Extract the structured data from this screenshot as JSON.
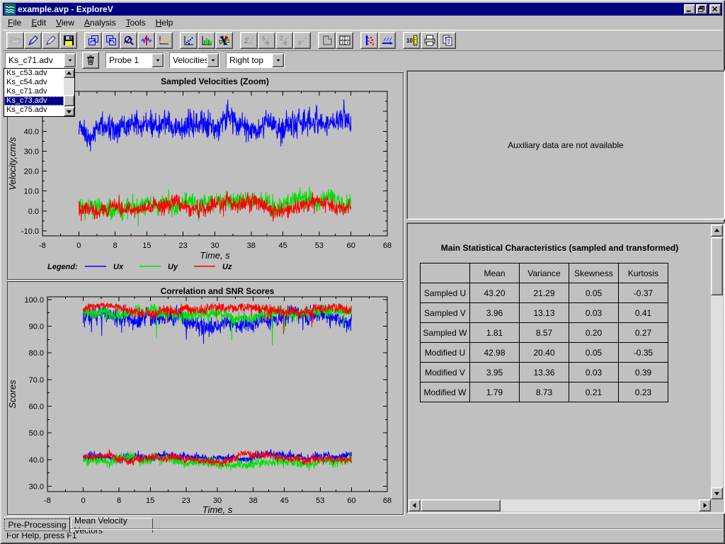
{
  "window": {
    "title": "example.avp - ExploreV"
  },
  "window_controls": [
    "minimize",
    "restore",
    "close"
  ],
  "menu": {
    "items": [
      "File",
      "Edit",
      "View",
      "Analysis",
      "Tools",
      "Help"
    ]
  },
  "toolbar": {
    "buttons": [
      {
        "name": "open-file-button",
        "icon": "open-file",
        "disabled": true
      },
      {
        "name": "pen-edit-blue-button",
        "icon": "pen-blue",
        "disabled": false
      },
      {
        "name": "pen-edit-button",
        "icon": "pen-plain",
        "disabled": false
      },
      {
        "name": "save-button",
        "icon": "save",
        "disabled": false
      },
      {
        "name": "undo-view-button",
        "icon": "undo-page",
        "disabled": false,
        "gap": true
      },
      {
        "name": "redo-view-button",
        "icon": "redo-page",
        "disabled": false
      },
      {
        "name": "zoom-graph-button",
        "icon": "zoom-graph",
        "disabled": false
      },
      {
        "name": "despike-filter-button",
        "icon": "despike",
        "disabled": false
      },
      {
        "name": "smooth-curve-button",
        "icon": "smooth",
        "disabled": false
      },
      {
        "name": "scatter-plot-button",
        "icon": "scatter",
        "disabled": false,
        "gap": true
      },
      {
        "name": "histogram-button",
        "icon": "bars",
        "disabled": false
      },
      {
        "name": "palette-fan-button",
        "icon": "palette",
        "disabled": false
      },
      {
        "name": "sigma-transform-button",
        "icon": "sigma",
        "disabled": true,
        "gap": true
      },
      {
        "name": "rotate-5theta-button",
        "icon": "rot5",
        "disabled": true
      },
      {
        "name": "rotate-2theta-button",
        "icon": "rot2",
        "disabled": true
      },
      {
        "name": "slope-line-button",
        "icon": "sline",
        "disabled": true
      },
      {
        "name": "page-flip-button",
        "icon": "pageflip",
        "disabled": false,
        "gap": true
      },
      {
        "name": "tile-windows-button",
        "icon": "tile",
        "disabled": false
      },
      {
        "name": "vertical-profile-button",
        "icon": "vprofile",
        "disabled": false,
        "gap": true
      },
      {
        "name": "horizontal-profile-button",
        "icon": "hprofile",
        "disabled": false
      },
      {
        "name": "scale-units-button",
        "icon": "ruler10",
        "disabled": false,
        "gap": true
      },
      {
        "name": "print-button",
        "icon": "print",
        "disabled": false
      },
      {
        "name": "copy-button",
        "icon": "copy",
        "disabled": false
      }
    ]
  },
  "combos": {
    "file": {
      "value": "Ks_c71.adv"
    },
    "probe": {
      "value": "Probe 1"
    },
    "quantity": {
      "value": "Velocities"
    },
    "position": {
      "value": "Right top"
    }
  },
  "file_dropdown": {
    "items": [
      "Ks_c53.adv",
      "Ks_c54.adv",
      "Ks_c71.adv",
      "Ks_c73.adv",
      "Ks_c75.adv"
    ],
    "selected_index": 3
  },
  "aux_panel": {
    "message": "Auxiliary data are not available"
  },
  "stats": {
    "title": "Main Statistical Characteristics (sampled and transformed)",
    "columns": [
      "",
      "Mean",
      "Variance",
      "Skewness",
      "Kurtosis"
    ],
    "rows": [
      {
        "label": "Sampled U",
        "values": [
          "43.20",
          "21.29",
          "0.05",
          "-0.37"
        ]
      },
      {
        "label": "Sampled V",
        "values": [
          "3.96",
          "13.13",
          "0.03",
          "0.41"
        ]
      },
      {
        "label": "Sampled W",
        "values": [
          "1.81",
          "8.57",
          "0.20",
          "0.27"
        ]
      },
      {
        "label": "Modified U",
        "values": [
          "42.98",
          "20.40",
          "0.05",
          "-0.35"
        ]
      },
      {
        "label": "Modified V",
        "values": [
          "3.95",
          "13.36",
          "0.03",
          "0.39"
        ]
      },
      {
        "label": "Modified W",
        "values": [
          "1.79",
          "8.73",
          "0.21",
          "0.23"
        ]
      }
    ]
  },
  "tabs": [
    {
      "label": "Pre-Processing",
      "active": true
    },
    {
      "label": "Mean Velocity Vectors",
      "active": false
    }
  ],
  "status": {
    "text": "For Help, press F1"
  },
  "colors": {
    "titlebar": "#000080",
    "selection": "#000080",
    "ux": "#0000ff",
    "uy": "#00e100",
    "uz": "#ff0000"
  },
  "chart_data": [
    {
      "type": "line",
      "title": "Sampled Velocities (Zoom)",
      "xlabel": "Time, s",
      "ylabel": "Velocity,cm/s",
      "xlim": [
        -8,
        68
      ],
      "ylim": [
        -12.5,
        60
      ],
      "xticks": [
        -8,
        0,
        8,
        15,
        23,
        30,
        38,
        45,
        53,
        60,
        68
      ],
      "yticks": [
        -10,
        0,
        10,
        20,
        30,
        40
      ],
      "x_data_range": [
        0,
        60
      ],
      "grid": false,
      "legend": {
        "label": "Legend:",
        "entries": [
          {
            "name": "Ux",
            "color": "#0000ff"
          },
          {
            "name": "Uy",
            "color": "#00e100"
          },
          {
            "name": "Uz",
            "color": "#ff0000"
          }
        ]
      },
      "series": [
        {
          "name": "Ux",
          "color": "#0000ff",
          "mean": 43.2,
          "sd": 4.2
        },
        {
          "name": "Uy",
          "color": "#00e100",
          "mean": 3.96,
          "sd": 3.1
        },
        {
          "name": "Uz",
          "color": "#ff0000",
          "mean": 1.81,
          "sd": 2.7
        }
      ]
    },
    {
      "type": "line",
      "title": "Correlation and SNR Scores",
      "xlabel": "Time, s",
      "ylabel": "Scores",
      "xlim": [
        -8,
        68
      ],
      "ylim": [
        28,
        101
      ],
      "xticks": [
        -8,
        0,
        8,
        15,
        23,
        30,
        38,
        45,
        53,
        60,
        68
      ],
      "yticks": [
        30,
        40,
        50,
        60,
        70,
        80,
        90,
        100
      ],
      "x_data_range": [
        0,
        60
      ],
      "grid": false,
      "series": [
        {
          "name": "Correlation Ux",
          "color": "#0000ff",
          "mean": 93.8,
          "sd": 2.2,
          "spike_p": 0.025,
          "spike_depth": 8,
          "max": 98.0
        },
        {
          "name": "Correlation Uy",
          "color": "#00e100",
          "mean": 95.2,
          "sd": 1.5,
          "spike_p": 0.005,
          "spike_depth": 20,
          "max": 98.3
        },
        {
          "name": "Correlation Uz",
          "color": "#ff0000",
          "mean": 96.0,
          "sd": 1.3,
          "spike_p": 0.01,
          "spike_depth": 10,
          "max": 98.5
        },
        {
          "name": "SNR Ux",
          "color": "#0000ff",
          "mean": 41.2,
          "sd": 1.0
        },
        {
          "name": "SNR Uy",
          "color": "#00e100",
          "mean": 39.6,
          "sd": 1.2
        },
        {
          "name": "SNR Uz",
          "color": "#ff0000",
          "mean": 40.3,
          "sd": 1.0
        }
      ]
    }
  ]
}
